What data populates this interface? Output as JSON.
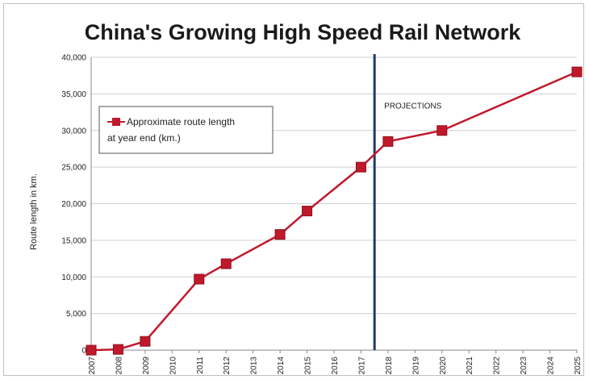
{
  "chart_data": {
    "type": "line",
    "title": "China's Growing High Speed Rail Network",
    "xlabel": "",
    "ylabel": "Route length in km.",
    "x": [
      "2007",
      "2008",
      "2009",
      "2010",
      "2011",
      "2012",
      "2013",
      "2014",
      "2015",
      "2016",
      "2017",
      "2018",
      "2019",
      "2020",
      "2021",
      "2022",
      "2023",
      "2024",
      "2025"
    ],
    "ylim": [
      0,
      40000
    ],
    "y_ticks": [
      "0",
      "5,000",
      "10,000",
      "15,000",
      "20,000",
      "25,000",
      "30,000",
      "35,000",
      "40,000"
    ],
    "grid": true,
    "legend_position": "top-left",
    "series": [
      {
        "name": "Approximate route length at year end (km.)",
        "name_lines": [
          "Approximate route length",
          "at year end (km.)"
        ],
        "color": "#c0192b",
        "points": [
          {
            "x": "2007",
            "y": 0
          },
          {
            "x": "2008",
            "y": 100
          },
          {
            "x": "2009",
            "y": 1200
          },
          {
            "x": "2011",
            "y": 9700
          },
          {
            "x": "2012",
            "y": 11800
          },
          {
            "x": "2014",
            "y": 15800
          },
          {
            "x": "2015",
            "y": 19000
          },
          {
            "x": "2017",
            "y": 25000
          },
          {
            "x": "2018",
            "y": 28500
          },
          {
            "x": "2020",
            "y": 30000
          },
          {
            "x": "2025",
            "y": 38000
          }
        ]
      }
    ],
    "divider": {
      "between": [
        "2017",
        "2018"
      ],
      "color": "#1f3a6e"
    },
    "annotations": [
      {
        "text": "PROJECTIONS"
      }
    ]
  }
}
